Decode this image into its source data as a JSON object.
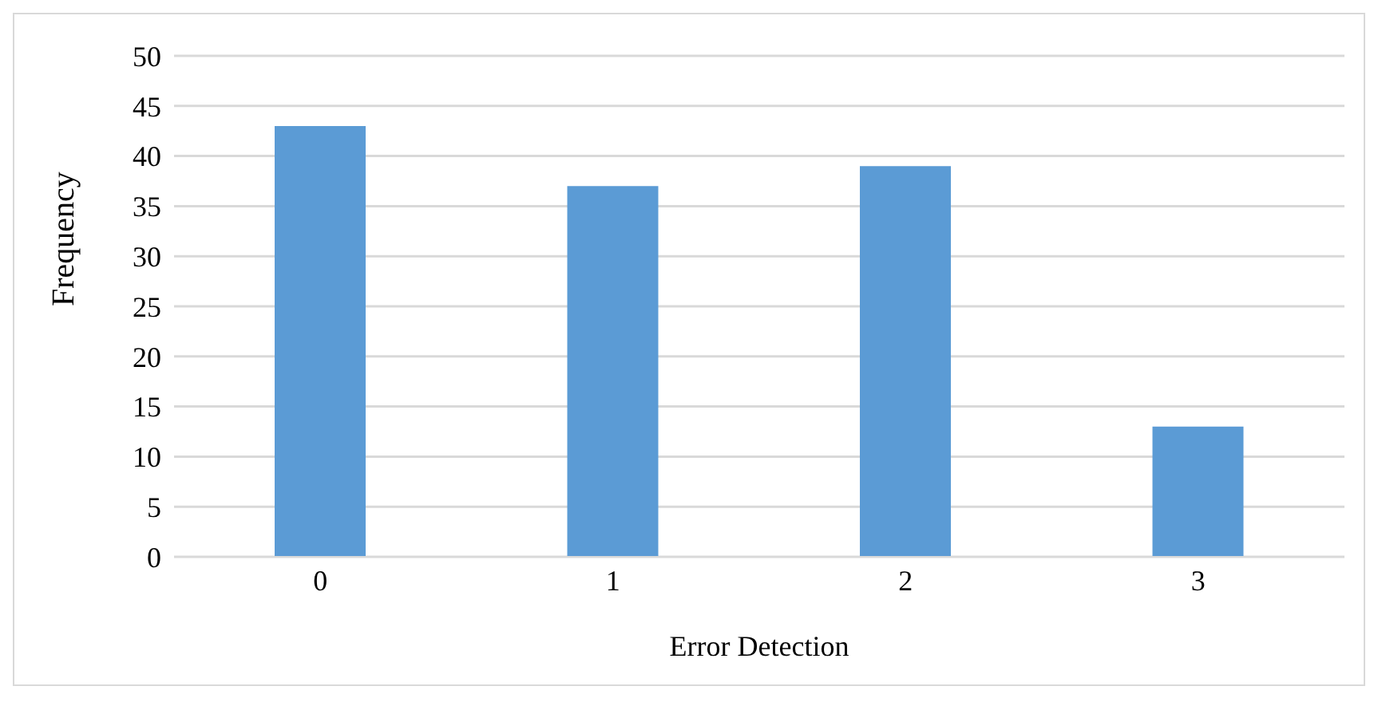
{
  "chart_data": {
    "type": "bar",
    "xlabel": "Error Detection",
    "ylabel": "Frequency",
    "categories": [
      "0",
      "1",
      "2",
      "3"
    ],
    "values": [
      43,
      37,
      39,
      13
    ],
    "color": "#5b9bd5",
    "ylim": [
      0,
      50
    ],
    "yticks": [
      0,
      5,
      10,
      15,
      20,
      25,
      30,
      35,
      40,
      45,
      50
    ],
    "grid": "y"
  }
}
